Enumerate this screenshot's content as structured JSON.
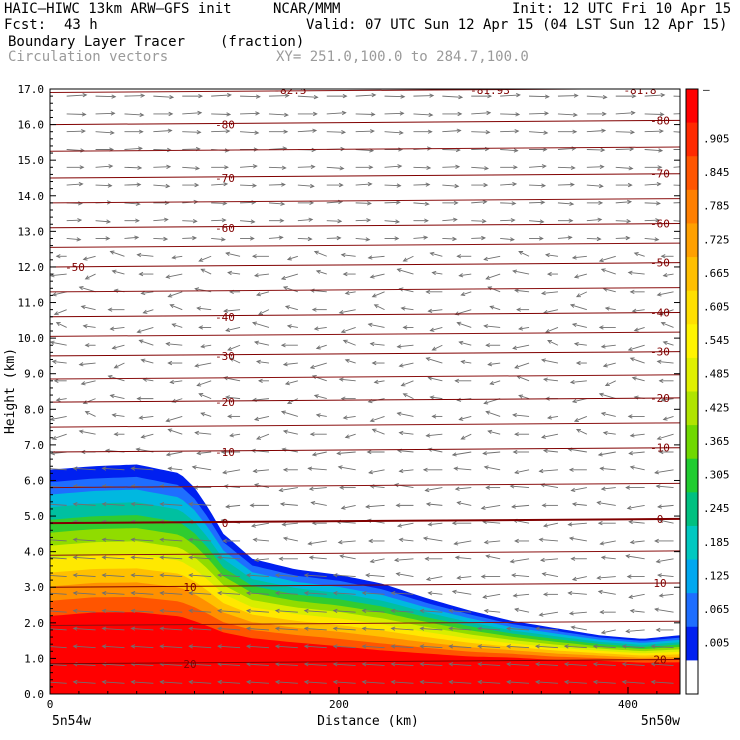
{
  "header": {
    "model_line": "HAIC–HIWC 13km ARW–GFS init",
    "org": "NCAR/MMM",
    "init": "Init: 12 UTC Fri 10 Apr 15",
    "fcst_label": "Fcst:",
    "fcst_value": "43 h",
    "valid": "Valid: 07 UTC Sun 12 Apr 15 (04 LST Sun 12 Apr 15)",
    "field1": "Boundary Layer Tracer",
    "field1_units": "(fraction)",
    "field2": "Circulation vectors",
    "xy": "XY= 251.0,100.0 to 284.7,100.0"
  },
  "chart_data": {
    "type": "heatmap",
    "xlabel": "Distance (km)",
    "ylabel": "Height (km)",
    "xlim": [
      0,
      436
    ],
    "ylim": [
      0,
      17
    ],
    "x_ticks": [
      0,
      200,
      400
    ],
    "y_ticks": [
      "0.0",
      "1.0",
      "2.0",
      "3.0",
      "4.0",
      "5.0",
      "6.0",
      "7.0",
      "8.0",
      "9.0",
      "10.0",
      "11.0",
      "12.0",
      "13.0",
      "14.0",
      "15.0",
      "16.0",
      "17.0"
    ],
    "left_endpoint": "5n54w",
    "right_endpoint": "5n50w",
    "colorbar_labels": [
      "–",
      ".905",
      ".845",
      ".785",
      ".725",
      ".665",
      ".605",
      ".545",
      ".485",
      ".425",
      ".365",
      ".305",
      ".245",
      ".185",
      ".125",
      ".065",
      ".005"
    ],
    "colorbar_colors": [
      "#ff0000",
      "#ff2a00",
      "#ff5500",
      "#ff7f00",
      "#ffa000",
      "#ffbf00",
      "#ffdf00",
      "#fff400",
      "#e0f000",
      "#b0e400",
      "#70d800",
      "#20cc30",
      "#00c080",
      "#00c8c0",
      "#00a8f0",
      "#1e6eff",
      "#0020f0",
      "#ffffff"
    ],
    "tracer_boundary": {
      "x": [
        0,
        30,
        60,
        90,
        100,
        110,
        120,
        140,
        170,
        200,
        230,
        260,
        290,
        320,
        350,
        380,
        410,
        436
      ],
      "top": [
        6.3,
        6.4,
        6.45,
        6.2,
        5.8,
        5.2,
        4.5,
        3.8,
        3.5,
        3.35,
        3.1,
        2.7,
        2.35,
        2.05,
        1.85,
        1.65,
        1.55,
        1.65
      ],
      "red_top": [
        1.7,
        1.8,
        1.8,
        1.7,
        1.6,
        1.5,
        1.4,
        1.3,
        1.2,
        1.1,
        1.0,
        0.95,
        0.9,
        0.9,
        0.85,
        0.85,
        0.8,
        0.8
      ]
    },
    "isotherms": [
      {
        "label": "-80",
        "height": 16.0
      },
      {
        "label": "-70",
        "height": 14.5
      },
      {
        "label": "-60",
        "height": 13.1
      },
      {
        "label": "-50",
        "height": 12.0
      },
      {
        "label": "-40",
        "height": 10.6
      },
      {
        "label": "-30",
        "height": 9.5
      },
      {
        "label": "-20",
        "height": 8.2
      },
      {
        "label": "-10",
        "height": 6.8
      },
      {
        "label": "0",
        "height": 4.8
      },
      {
        "label": "10",
        "height": 3.0
      },
      {
        "label": "20",
        "height": 0.85
      }
    ],
    "top_labels": [
      "-82.5",
      "-81.93",
      "-81.8"
    ]
  }
}
